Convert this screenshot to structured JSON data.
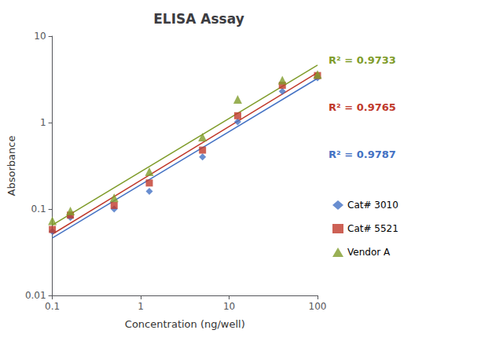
{
  "chart_data": {
    "type": "scatter",
    "title": "ELISA Assay",
    "xlabel": "Concentration (ng/well)",
    "ylabel": "Absorbance",
    "log": true,
    "grid": false,
    "xlim": [
      0.1,
      100
    ],
    "ylim": [
      0.01,
      10
    ],
    "xticks": [
      0.1,
      1,
      10,
      100
    ],
    "yticks": [
      0.01,
      0.1,
      1,
      10
    ],
    "series": [
      {
        "name": "Cat# 3010",
        "color": "#4472C4",
        "marker": "diamond",
        "x": [
          0.1,
          0.16,
          0.5,
          1.25,
          5,
          12.5,
          40,
          100
        ],
        "y": [
          0.055,
          0.08,
          0.1,
          0.16,
          0.4,
          1.02,
          2.3,
          3.3
        ],
        "fit": {
          "x": [
            0.1,
            100
          ],
          "y": [
            0.04631,
            3.247
          ]
        }
      },
      {
        "name": "Cat# 5521",
        "color": "#C0392B",
        "marker": "square",
        "x": [
          0.1,
          0.16,
          0.5,
          1.25,
          5,
          12.5,
          40,
          100
        ],
        "y": [
          0.058,
          0.085,
          0.11,
          0.2,
          0.48,
          1.2,
          2.7,
          3.5
        ],
        "fit": {
          "x": [
            0.1,
            100
          ],
          "y": [
            0.05117,
            3.78
          ]
        }
      },
      {
        "name": "Vendor A",
        "color": "#7F9C2A",
        "marker": "triangle",
        "x": [
          0.1,
          0.16,
          0.5,
          1.25,
          5,
          12.5,
          40,
          100
        ],
        "y": [
          0.073,
          0.095,
          0.135,
          0.27,
          0.68,
          1.85,
          3.1,
          3.6
        ],
        "fit": {
          "x": [
            0.1,
            100
          ],
          "y": [
            0.0653,
            4.629
          ]
        }
      }
    ],
    "annotations": [
      {
        "text": "R² = 0.9733",
        "color": "#7F9C2A"
      },
      {
        "text": "R² = 0.9765",
        "color": "#C0392B"
      },
      {
        "text": "R² = 0.9787",
        "color": "#4472C4"
      }
    ]
  }
}
